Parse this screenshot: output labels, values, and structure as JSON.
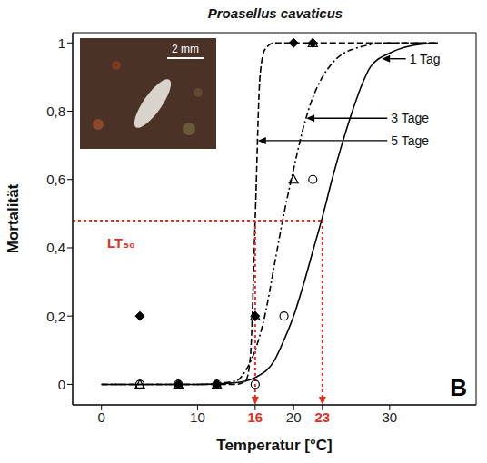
{
  "chart_data": {
    "type": "line",
    "title": "Proasellus cavaticus",
    "x_label": "Temperatur [°C]",
    "y_label": "Mortalität",
    "panel": "B",
    "xlim": [
      -3,
      39
    ],
    "xticks": [
      0,
      10,
      20,
      30
    ],
    "ylim": [
      -0.06,
      1.03
    ],
    "yticks": [
      0,
      {
        "value": 0.2,
        "label": "0,2"
      },
      {
        "value": 0.4,
        "label": "0,4"
      },
      {
        "value": 0.6,
        "label": "0,6"
      },
      {
        "value": 0.8,
        "label": "0,8"
      },
      1
    ],
    "inset": {
      "scale_bar": "2 mm"
    },
    "lt50": {
      "label": "LT₅₀",
      "mortality": 0.48,
      "temperatures": [
        16,
        23
      ],
      "color": "#e0301e"
    },
    "series": [
      {
        "name": "1 Tag",
        "color": "#000000",
        "line_style": "solid",
        "marker": "circle",
        "x": [
          0,
          10,
          14,
          16,
          18,
          19,
          20,
          21,
          22,
          23,
          24,
          25,
          26,
          27,
          28,
          30,
          32,
          35
        ],
        "values": [
          0,
          0,
          0.005,
          0.02,
          0.07,
          0.13,
          0.2,
          0.29,
          0.39,
          0.49,
          0.6,
          0.7,
          0.79,
          0.87,
          0.93,
          0.97,
          0.99,
          1.0
        ],
        "points": {
          "x": [
            4,
            8,
            12,
            16,
            19,
            22
          ],
          "y": [
            0,
            0,
            0,
            0,
            0.2,
            0.6
          ]
        }
      },
      {
        "name": "3 Tage",
        "color": "#000000",
        "line_style": "dashdot",
        "marker": "triangle",
        "x": [
          0,
          10,
          14,
          15,
          16,
          17,
          18,
          19,
          20,
          21,
          22,
          23,
          24,
          26,
          30,
          35
        ],
        "values": [
          0,
          0,
          0.01,
          0.04,
          0.1,
          0.2,
          0.35,
          0.5,
          0.63,
          0.75,
          0.84,
          0.9,
          0.94,
          0.98,
          1,
          1
        ],
        "points": {
          "x": [
            4,
            8,
            12,
            16,
            20,
            22
          ],
          "y": [
            0,
            0,
            0,
            0.2,
            0.6,
            1
          ]
        }
      },
      {
        "name": "5 Tage",
        "color": "#000000",
        "line_style": "dashed",
        "marker": "diamond",
        "x": [
          0,
          10,
          14,
          15,
          15.5,
          16,
          16.5,
          17,
          18,
          20,
          35
        ],
        "values": [
          0,
          0,
          0,
          0.01,
          0.08,
          0.48,
          0.9,
          0.98,
          1,
          1,
          1
        ],
        "points": {
          "x": [
            4,
            8,
            12,
            16,
            20,
            22
          ],
          "y": [
            0.2,
            0,
            0,
            0.2,
            1,
            1
          ]
        }
      }
    ]
  }
}
